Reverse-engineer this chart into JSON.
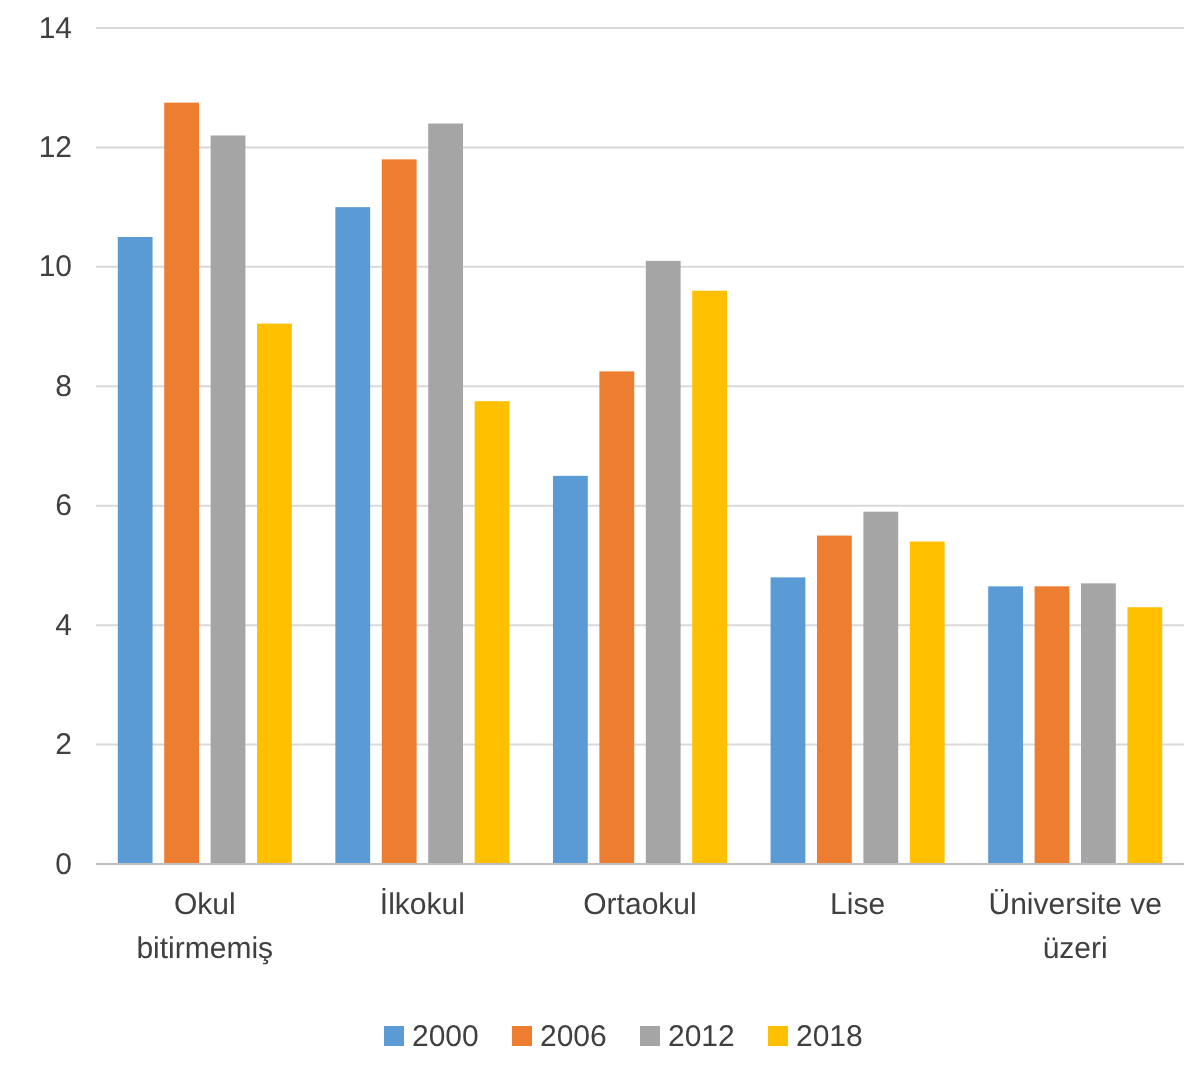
{
  "chart_data": {
    "type": "bar",
    "categories": [
      "Okul bitirmemiş",
      "İlkokul",
      "Ortaokul",
      "Lise",
      "Üniversite ve üzeri"
    ],
    "series": [
      {
        "name": "2000",
        "color": "#5b9bd5",
        "values": [
          10.5,
          11.0,
          6.5,
          4.8,
          4.65
        ]
      },
      {
        "name": "2006",
        "color": "#ed7d31",
        "values": [
          12.75,
          11.8,
          8.25,
          5.5,
          4.65
        ]
      },
      {
        "name": "2012",
        "color": "#a5a5a5",
        "values": [
          12.2,
          12.4,
          10.1,
          5.9,
          4.7
        ]
      },
      {
        "name": "2018",
        "color": "#ffc000",
        "values": [
          9.05,
          7.75,
          9.6,
          5.4,
          4.3
        ]
      }
    ],
    "ylim": [
      0,
      14
    ],
    "yticks": [
      0,
      2,
      4,
      6,
      8,
      10,
      12,
      14
    ],
    "grid": "y",
    "legend": "bottom"
  }
}
